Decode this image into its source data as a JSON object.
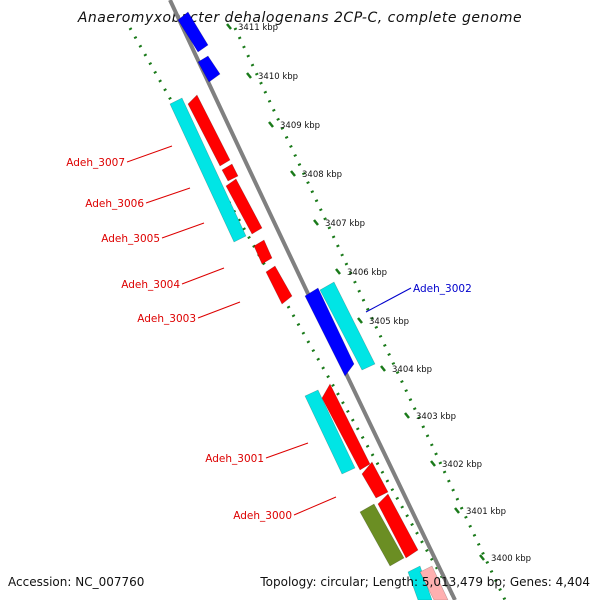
{
  "title": "Anaeromyxobacter dehalogenans 2CP-C, complete genome",
  "accession": "Accession: NC_007760",
  "topology": "Topology: circular; Length: 5,013,479 bp; Genes: 4,404",
  "colors": {
    "forward_gene": "#ff0000",
    "reverse_gene": "#0000ff",
    "cds": "#00e5e5",
    "other_feature": "#6b8e23",
    "backbone": "#808080",
    "ticks": "#1a7a1a",
    "label_red": "#dd0000",
    "label_blue": "#0000cc"
  },
  "kbp_marks": [
    {
      "text": "3411 kbp"
    },
    {
      "text": "3410 kbp"
    },
    {
      "text": "3409 kbp"
    },
    {
      "text": "3408 kbp"
    },
    {
      "text": "3407 kbp"
    },
    {
      "text": "3406 kbp"
    },
    {
      "text": "3405 kbp"
    },
    {
      "text": "3404 kbp"
    },
    {
      "text": "3403 kbp"
    },
    {
      "text": "3402 kbp"
    },
    {
      "text": "3401 kbp"
    },
    {
      "text": "3400 kbp"
    }
  ],
  "gene_labels": [
    {
      "text": "Adeh_3007",
      "color": "red"
    },
    {
      "text": "Adeh_3006",
      "color": "red"
    },
    {
      "text": "Adeh_3005",
      "color": "red"
    },
    {
      "text": "Adeh_3004",
      "color": "red"
    },
    {
      "text": "Adeh_3003",
      "color": "red"
    },
    {
      "text": "Adeh_3002",
      "color": "blue"
    },
    {
      "text": "Adeh_3001",
      "color": "red"
    },
    {
      "text": "Adeh_3000",
      "color": "red"
    }
  ]
}
